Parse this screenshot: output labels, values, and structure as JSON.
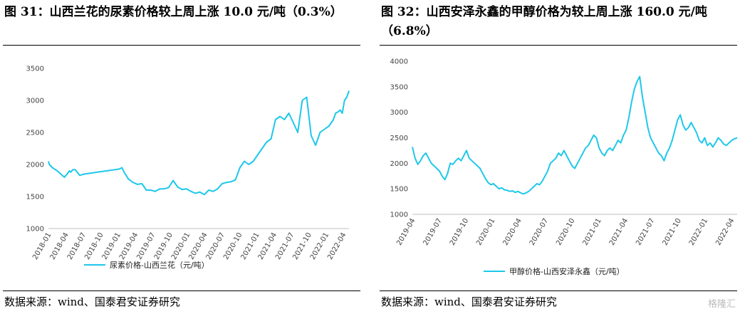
{
  "panels": [
    {
      "title": "图 31：山西兰花的尿素价格较上周上涨 10.0 元/吨（0.3%）",
      "source": "数据来源：wind、国泰君安证券研究",
      "legend": "尿素价格-山西兰花（元/吨）"
    },
    {
      "title": "图 32：山西安泽永鑫的甲醇价格为较上周上涨 160.0 元/吨（6.8%）",
      "source": "数据来源：wind、国泰君安证券研究",
      "legend": "甲醇价格-山西安泽永鑫（元/吨）"
    }
  ],
  "watermark": "格隆汇",
  "chart_data": [
    {
      "type": "line",
      "color": "#1ec8ea",
      "x_ticks": [
        "2018-01",
        "2018-04",
        "2018-07",
        "2018-10",
        "2019-01",
        "2019-04",
        "2019-07",
        "2019-10",
        "2020-01",
        "2020-04",
        "2020-07",
        "2020-10",
        "2021-01",
        "2021-04",
        "2021-07",
        "2021-10",
        "2022-01",
        "2022-04"
      ],
      "ylim": [
        1000,
        3500
      ],
      "y_ticks": [
        1000,
        1500,
        2000,
        2500,
        3000,
        3500
      ],
      "series": [
        {
          "name": "尿素价格-山西兰花（元/吨）",
          "x": [
            0,
            0.2,
            0.9,
            2,
            3.6,
            3.9,
            4.2,
            4.7,
            5,
            5.5,
            6,
            7,
            8,
            9,
            10,
            11,
            12,
            13,
            14,
            15,
            16,
            16.5,
            17,
            18,
            19,
            20,
            21,
            22,
            23,
            24,
            25,
            26,
            27,
            28,
            29,
            30,
            31,
            32,
            33,
            34,
            35,
            36,
            37,
            38,
            39,
            40,
            41,
            42,
            43,
            44,
            45,
            46,
            47,
            48,
            49,
            50,
            51,
            52,
            53,
            54,
            55,
            56,
            57,
            58,
            59,
            60,
            61,
            62,
            63,
            64,
            64.5,
            65,
            65.5,
            66,
            66.5,
            67,
            67.5
          ],
          "y": [
            2050,
            2000,
            1950,
            1900,
            1800,
            1830,
            1850,
            1900,
            1880,
            1920,
            1920,
            1830,
            1850,
            1860,
            1870,
            1880,
            1890,
            1900,
            1910,
            1920,
            1930,
            1950,
            1880,
            1770,
            1720,
            1690,
            1700,
            1600,
            1600,
            1580,
            1620,
            1620,
            1640,
            1750,
            1650,
            1610,
            1620,
            1580,
            1550,
            1570,
            1530,
            1600,
            1580,
            1620,
            1700,
            1720,
            1730,
            1760,
            1950,
            2050,
            2000,
            2050,
            2150,
            2250,
            2350,
            2400,
            2700,
            2750,
            2700,
            2800,
            2650,
            2500,
            3000,
            3050,
            2450,
            2300,
            2500,
            2550,
            2600,
            2700,
            2800,
            2820,
            2850,
            2800,
            3000,
            3050,
            3150
          ]
        }
      ]
    },
    {
      "type": "line",
      "color": "#1ec8ea",
      "x_ticks": [
        "2019-04",
        "2019-07",
        "2019-10",
        "2020-01",
        "2020-04",
        "2020-07",
        "2020-10",
        "2021-01",
        "2021-04",
        "2021-07",
        "2021-10",
        "2022-01",
        "2022-04"
      ],
      "ylim": [
        1000,
        4000
      ],
      "y_ticks": [
        1000,
        1500,
        2000,
        2500,
        3000,
        3500,
        4000
      ],
      "series": [
        {
          "name": "甲醇价格-山西安泽永鑫（元/吨）",
          "x": [
            0,
            0.5,
            1,
            1.5,
            2,
            2.5,
            3,
            3.5,
            4,
            4.5,
            5,
            5.5,
            6,
            6.5,
            7,
            7.5,
            8,
            8.5,
            9,
            9.5,
            10,
            10.5,
            11,
            11.5,
            12,
            12.5,
            13,
            13.5,
            14,
            14.5,
            15,
            15.5,
            16,
            16.5,
            17,
            17.5,
            18,
            18.5,
            19,
            19.5,
            20,
            20.5,
            21,
            21.5,
            22,
            22.5,
            23,
            23.5,
            24,
            24.5,
            25,
            25.5,
            26,
            26.5,
            27,
            27.5,
            28,
            28.5,
            29,
            29.5,
            30,
            30.5,
            31,
            31.5,
            32,
            32.5,
            33,
            33.5,
            34,
            34.5,
            35,
            35.5,
            36,
            36.5,
            37,
            37.5,
            38,
            38.5,
            39,
            39.5,
            40,
            40.5,
            41,
            41.5,
            42,
            42.5,
            43,
            43.5,
            44,
            44.5,
            45,
            45.5,
            46,
            46.5,
            47,
            47.5,
            48,
            48.5,
            49,
            49.5,
            50,
            50.5,
            51,
            51.5,
            52,
            52.5,
            53,
            53.5,
            54,
            54.5,
            55,
            55.5,
            56,
            56.5,
            57,
            57.5,
            58,
            58.5,
            59,
            59.5,
            60
          ],
          "y": [
            2320,
            2100,
            1980,
            2050,
            2150,
            2200,
            2100,
            2000,
            1950,
            1900,
            1850,
            1750,
            1680,
            1800,
            2000,
            1980,
            2050,
            2100,
            2050,
            2150,
            2250,
            2100,
            2050,
            2000,
            1950,
            1900,
            1800,
            1700,
            1620,
            1580,
            1600,
            1550,
            1500,
            1520,
            1480,
            1470,
            1450,
            1460,
            1430,
            1450,
            1420,
            1400,
            1420,
            1450,
            1500,
            1550,
            1600,
            1580,
            1650,
            1750,
            1850,
            2000,
            2050,
            2100,
            2200,
            2150,
            2250,
            2150,
            2050,
            1950,
            1900,
            2000,
            2100,
            2200,
            2300,
            2350,
            2450,
            2550,
            2500,
            2300,
            2200,
            2150,
            2250,
            2300,
            2250,
            2350,
            2450,
            2400,
            2550,
            2650,
            2900,
            3200,
            3450,
            3600,
            3700,
            3300,
            3000,
            2700,
            2500,
            2400,
            2300,
            2200,
            2150,
            2050,
            2200,
            2300,
            2450,
            2650,
            2850,
            2950,
            2750,
            2650,
            2700,
            2800,
            2700,
            2600,
            2450,
            2400,
            2500,
            2350,
            2400,
            2320,
            2400,
            2500,
            2450,
            2380,
            2350,
            2400,
            2450,
            2480,
            2500
          ]
        }
      ]
    }
  ]
}
